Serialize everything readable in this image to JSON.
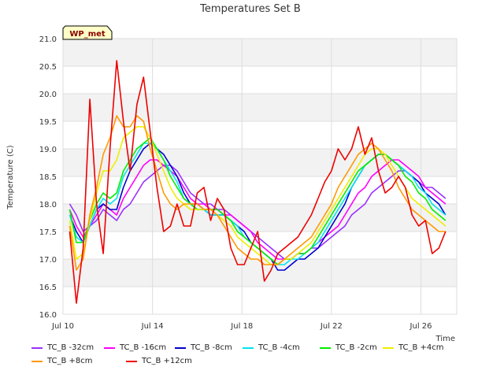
{
  "chart_data": {
    "type": "line",
    "title": "Temperatures Set B",
    "xlabel": "Time",
    "ylabel": "Temperature (C)",
    "badge": "WP_met",
    "xlim": [
      0,
      17.6
    ],
    "ylim": [
      16.0,
      21.0
    ],
    "grid": true,
    "legend_position": "bottom",
    "yticks": [
      "16.0",
      "16.5",
      "17.0",
      "17.5",
      "18.0",
      "18.5",
      "19.0",
      "19.5",
      "20.0",
      "20.5",
      "21.0"
    ],
    "ytick_values": [
      16.0,
      16.5,
      17.0,
      17.5,
      18.0,
      18.5,
      19.0,
      19.5,
      20.0,
      20.5,
      21.0
    ],
    "xticks": [
      "Jul 10",
      "Jul 14",
      "Jul 18",
      "Jul 22",
      "Jul 26"
    ],
    "xtick_values": [
      0,
      4,
      8,
      12,
      16
    ],
    "x": [
      0.3,
      0.6,
      0.9,
      1.2,
      1.5,
      1.8,
      2.1,
      2.4,
      2.7,
      3.0,
      3.3,
      3.6,
      3.9,
      4.2,
      4.5,
      4.8,
      5.1,
      5.4,
      5.7,
      6.0,
      6.3,
      6.6,
      6.9,
      7.2,
      7.5,
      7.8,
      8.1,
      8.4,
      8.7,
      9.0,
      9.3,
      9.6,
      9.9,
      10.2,
      10.5,
      10.8,
      11.1,
      11.4,
      11.7,
      12.0,
      12.3,
      12.6,
      12.9,
      13.2,
      13.5,
      13.8,
      14.1,
      14.4,
      14.7,
      15.0,
      15.3,
      15.6,
      15.9,
      16.2,
      16.5,
      16.8,
      17.1
    ],
    "series": [
      {
        "name": "TC_B -32cm",
        "color": "#9b30ff",
        "values": [
          18.0,
          17.8,
          17.5,
          17.6,
          17.7,
          17.9,
          17.8,
          17.7,
          17.9,
          18.0,
          18.2,
          18.4,
          18.5,
          18.6,
          18.7,
          18.7,
          18.6,
          18.4,
          18.2,
          18.1,
          18.0,
          18.0,
          17.9,
          17.9,
          17.8,
          17.7,
          17.6,
          17.5,
          17.4,
          17.3,
          17.2,
          17.1,
          17.0,
          17.0,
          17.1,
          17.1,
          17.2,
          17.2,
          17.3,
          17.4,
          17.5,
          17.6,
          17.8,
          17.9,
          18.0,
          18.2,
          18.3,
          18.4,
          18.5,
          18.6,
          18.6,
          18.5,
          18.4,
          18.3,
          18.3,
          18.2,
          18.1
        ]
      },
      {
        "name": "TC_B -16cm",
        "color": "#ff00ff",
        "values": [
          17.9,
          17.6,
          17.4,
          17.6,
          17.8,
          18.0,
          17.9,
          17.8,
          18.1,
          18.3,
          18.5,
          18.7,
          18.8,
          18.8,
          18.7,
          18.6,
          18.5,
          18.3,
          18.1,
          18.0,
          18.0,
          17.9,
          17.9,
          17.8,
          17.8,
          17.7,
          17.6,
          17.5,
          17.3,
          17.2,
          17.1,
          17.0,
          17.0,
          17.0,
          17.1,
          17.1,
          17.2,
          17.3,
          17.4,
          17.5,
          17.6,
          17.8,
          18.0,
          18.2,
          18.3,
          18.5,
          18.6,
          18.7,
          18.8,
          18.8,
          18.7,
          18.6,
          18.5,
          18.3,
          18.2,
          18.1,
          18.0
        ]
      },
      {
        "name": "TC_B -8cm",
        "color": "#0000cd",
        "values": [
          17.8,
          17.5,
          17.3,
          17.6,
          17.9,
          18.0,
          17.9,
          17.9,
          18.3,
          18.6,
          18.8,
          19.0,
          19.1,
          19.0,
          18.9,
          18.7,
          18.5,
          18.2,
          18.0,
          18.0,
          17.9,
          17.8,
          17.8,
          17.8,
          17.7,
          17.6,
          17.5,
          17.3,
          17.2,
          17.1,
          17.0,
          16.8,
          16.8,
          16.9,
          17.0,
          17.0,
          17.1,
          17.2,
          17.4,
          17.6,
          17.8,
          18.0,
          18.3,
          18.5,
          18.7,
          18.8,
          18.9,
          18.9,
          18.8,
          18.7,
          18.6,
          18.5,
          18.4,
          18.2,
          18.1,
          18.0,
          17.8
        ]
      },
      {
        "name": "TC_B -4cm",
        "color": "#00e5ee",
        "values": [
          17.8,
          17.4,
          17.3,
          17.6,
          17.9,
          18.1,
          18.0,
          18.1,
          18.5,
          18.7,
          18.9,
          19.1,
          19.1,
          19.0,
          18.8,
          18.6,
          18.4,
          18.1,
          18.0,
          17.9,
          17.9,
          17.8,
          17.8,
          17.8,
          17.7,
          17.6,
          17.4,
          17.3,
          17.2,
          17.1,
          17.0,
          16.9,
          16.9,
          17.0,
          17.0,
          17.1,
          17.2,
          17.3,
          17.5,
          17.7,
          17.9,
          18.1,
          18.3,
          18.5,
          18.7,
          18.8,
          18.9,
          18.9,
          18.8,
          18.7,
          18.6,
          18.5,
          18.3,
          18.2,
          18.0,
          17.9,
          17.8
        ]
      },
      {
        "name": "TC_B -2cm",
        "color": "#00ee00",
        "values": [
          17.9,
          17.3,
          17.3,
          17.7,
          18.0,
          18.2,
          18.1,
          18.2,
          18.6,
          18.8,
          19.0,
          19.1,
          19.2,
          19.0,
          18.8,
          18.5,
          18.3,
          18.1,
          18.0,
          17.9,
          17.9,
          17.9,
          17.9,
          17.8,
          17.7,
          17.5,
          17.4,
          17.3,
          17.2,
          17.1,
          17.0,
          16.9,
          17.0,
          17.0,
          17.1,
          17.1,
          17.2,
          17.4,
          17.6,
          17.8,
          18.0,
          18.2,
          18.4,
          18.6,
          18.7,
          18.8,
          18.9,
          18.9,
          18.8,
          18.7,
          18.5,
          18.4,
          18.2,
          18.1,
          17.9,
          17.8,
          17.7
        ]
      },
      {
        "name": "TC_B +4cm",
        "color": "#eeee00",
        "values": [
          17.7,
          17.0,
          17.1,
          17.7,
          18.2,
          18.6,
          18.6,
          18.8,
          19.2,
          19.3,
          19.4,
          19.4,
          19.2,
          18.9,
          18.6,
          18.3,
          18.1,
          18.0,
          17.9,
          17.9,
          17.9,
          17.9,
          17.8,
          17.7,
          17.6,
          17.4,
          17.3,
          17.2,
          17.1,
          17.0,
          16.9,
          16.9,
          17.0,
          17.0,
          17.1,
          17.2,
          17.3,
          17.5,
          17.7,
          17.9,
          18.1,
          18.3,
          18.5,
          18.7,
          18.9,
          19.0,
          19.0,
          18.9,
          18.7,
          18.5,
          18.3,
          18.1,
          18.0,
          17.9,
          17.8,
          17.7,
          17.6
        ]
      },
      {
        "name": "TC_B +8cm",
        "color": "#ff9900",
        "values": [
          17.6,
          16.8,
          17.0,
          17.8,
          18.3,
          18.9,
          19.2,
          19.6,
          19.4,
          19.4,
          19.6,
          19.5,
          19.0,
          18.6,
          18.2,
          18.0,
          17.9,
          18.0,
          18.0,
          18.0,
          17.9,
          17.9,
          17.8,
          17.6,
          17.4,
          17.2,
          17.1,
          17.0,
          17.0,
          16.9,
          16.9,
          16.9,
          17.0,
          17.1,
          17.2,
          17.3,
          17.4,
          17.6,
          17.8,
          18.0,
          18.3,
          18.5,
          18.7,
          18.9,
          19.0,
          19.1,
          19.0,
          18.8,
          18.6,
          18.3,
          18.1,
          17.9,
          17.8,
          17.7,
          17.6,
          17.5,
          17.5
        ]
      },
      {
        "name": "TC_B +12cm",
        "color": "#ee0000",
        "values": [
          17.5,
          16.2,
          17.2,
          19.9,
          18.0,
          17.1,
          19.0,
          20.6,
          19.5,
          18.6,
          19.8,
          20.3,
          19.3,
          18.3,
          17.5,
          17.6,
          18.0,
          17.6,
          17.6,
          18.2,
          18.3,
          17.7,
          18.1,
          17.9,
          17.2,
          16.9,
          16.9,
          17.2,
          17.5,
          16.6,
          16.8,
          17.1,
          17.2,
          17.3,
          17.4,
          17.6,
          17.8,
          18.1,
          18.4,
          18.6,
          19.0,
          18.8,
          19.0,
          19.4,
          18.9,
          19.2,
          18.6,
          18.2,
          18.3,
          18.5,
          18.3,
          17.8,
          17.6,
          17.7,
          17.1,
          17.2,
          17.5
        ]
      }
    ]
  }
}
